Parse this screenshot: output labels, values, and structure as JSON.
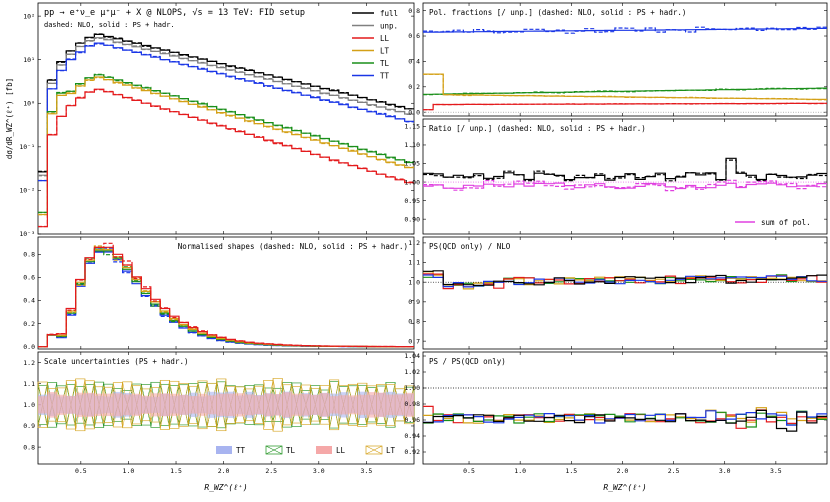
{
  "colors": {
    "full": "#000000",
    "unp": "#808080",
    "LL": "#e41a1c",
    "LT": "#d4a017",
    "TL": "#1a8f1a",
    "TT": "#1a36e6",
    "sum": "#e040e0"
  },
  "shared": {
    "xlabel": "R_WZ^(ℓ⁺)",
    "xticks": [
      "0.5",
      "1.0",
      "1.5",
      "2.0",
      "2.5",
      "3.0",
      "3.5"
    ],
    "xticks_val": [
      0.5,
      1.0,
      1.5,
      2.0,
      2.5,
      3.0,
      3.5
    ],
    "xlim": [
      0.05,
      4.0
    ]
  },
  "chart_data": [
    {
      "id": "distribution",
      "type": "line",
      "title": "pp → e⁺ν_e μ⁺μ⁻ + X @ NLOPS, √s = 13 TeV: FID setup",
      "subtitle": "dashed: NLO, solid : PS + hadr.",
      "ylabel": "dσ/dR_WZ^(ℓ⁺) [fb]",
      "yscale": "log",
      "ylim": [
        0.001,
        200
      ],
      "yticks": [
        "10⁻³",
        "10⁻²",
        "10⁻¹",
        "10⁰",
        "10¹",
        "10²"
      ],
      "yticks_val": [
        0.001,
        0.01,
        0.1,
        1,
        10,
        100
      ],
      "legend": [
        "full",
        "unp.",
        "LL",
        "LT",
        "TL",
        "TT"
      ],
      "legend_loc": "top-right",
      "series": [
        {
          "name": "full",
          "peak": 38,
          "scale": 1.0
        },
        {
          "name": "unp.",
          "peak": 32,
          "scale": 0.9
        },
        {
          "name": "TT",
          "peak": 24,
          "scale": 0.62
        },
        {
          "name": "TL",
          "peak": 4.5,
          "scale": 0.13
        },
        {
          "name": "LT",
          "peak": 4.0,
          "scale": 0.07
        },
        {
          "name": "LL",
          "peak": 2.1,
          "scale": 0.055
        }
      ]
    },
    {
      "id": "normalised",
      "type": "line",
      "title": "Normalised shapes (dashed: NLO, solid : PS + hadr.)",
      "ylim": [
        -0.02,
        0.95
      ],
      "yticks": [
        "0.0",
        "0.2",
        "0.4",
        "0.6",
        "0.8"
      ],
      "yticks_val": [
        0,
        0.2,
        0.4,
        0.6,
        0.8
      ],
      "peak_values": {
        "TT": 0.83,
        "TL": 0.84,
        "LT": 0.85,
        "LL": 0.87
      }
    },
    {
      "id": "scale_unc",
      "type": "area",
      "title": "Scale uncertainties (PS + hadr.)",
      "ylim": [
        0.72,
        1.25
      ],
      "yticks": [
        "0.8",
        "0.9",
        "1.0",
        "1.1",
        "1.2"
      ],
      "yticks_val": [
        0.8,
        0.9,
        1.0,
        1.1,
        1.2
      ],
      "legend": [
        "TT",
        "TL",
        "LL",
        "LT"
      ],
      "band_halfwidth": {
        "TT": 0.05,
        "TL": 0.09,
        "LL": 0.05,
        "LT": 0.1
      }
    },
    {
      "id": "pol_fractions",
      "type": "line",
      "title": "Pol. fractions [/ unp.]  (dashed: NLO, solid : PS + hadr.)",
      "ylim": [
        -0.03,
        0.86
      ],
      "yticks": [
        "0.0",
        "0.2",
        "0.4",
        "0.6",
        "0.8"
      ],
      "yticks_val": [
        0,
        0.2,
        0.4,
        0.6,
        0.8
      ],
      "values": {
        "TT": [
          0.63,
          0.66
        ],
        "TL": [
          0.14,
          0.19
        ],
        "LT": [
          0.3,
          0.1
        ],
        "LL": [
          0.06,
          0.07
        ]
      }
    },
    {
      "id": "ratio_unp",
      "type": "line",
      "title": "Ratio [/ unp.] (dashed: NLO, solid : PS + hadr.)",
      "ylim": [
        0.86,
        1.17
      ],
      "yticks": [
        "0.90",
        "0.95",
        "1.00",
        "1.05",
        "1.10",
        "1.15"
      ],
      "yticks_val": [
        0.9,
        0.95,
        1.0,
        1.05,
        1.1,
        1.15
      ],
      "legend": [
        "sum of pol."
      ]
    },
    {
      "id": "ps_qcd_over_nlo",
      "type": "line",
      "title": "PS(QCD only) / NLO",
      "ylim": [
        0.66,
        1.23
      ],
      "yticks": [
        "0.7",
        "0.8",
        "0.9",
        "1.0",
        "1.1",
        "1.2"
      ],
      "yticks_val": [
        0.7,
        0.8,
        0.9,
        1.0,
        1.1,
        1.2
      ]
    },
    {
      "id": "ps_over_psqcd",
      "type": "line",
      "title": "PS / PS(QCD only)",
      "ylim": [
        0.905,
        1.045
      ],
      "yticks": [
        "0.92",
        "0.94",
        "0.96",
        "0.98",
        "1.00",
        "1.02",
        "1.04"
      ],
      "yticks_val": [
        0.92,
        0.94,
        0.96,
        0.98,
        1.0,
        1.02,
        1.04
      ]
    }
  ]
}
